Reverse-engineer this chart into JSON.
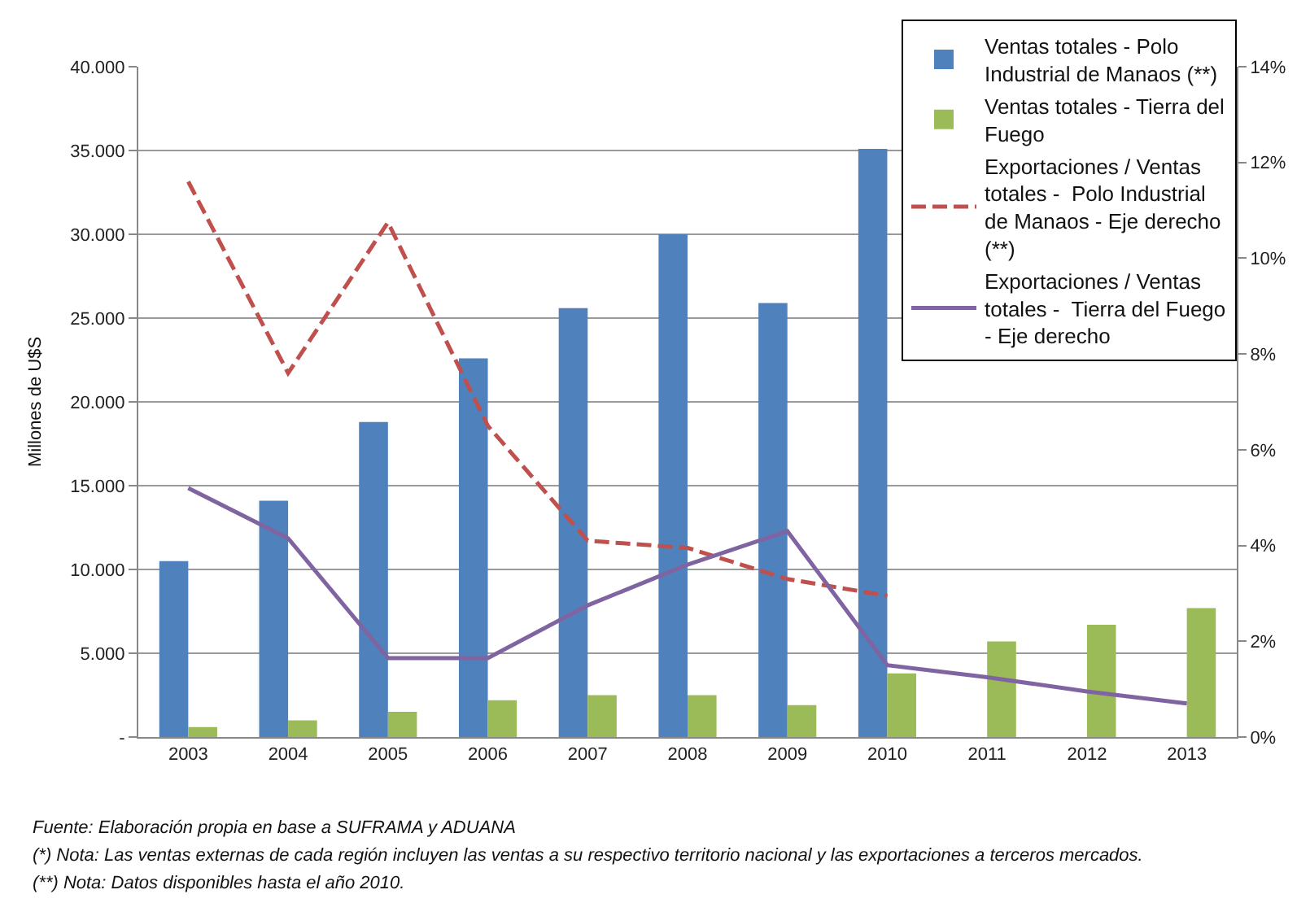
{
  "chart_data": {
    "type": "bar",
    "ylabel": "Millones de U$S",
    "categories": [
      "2003",
      "2004",
      "2005",
      "2006",
      "2007",
      "2008",
      "2009",
      "2010",
      "2011",
      "2012",
      "2013"
    ],
    "series": [
      {
        "name": "Ventas totales - Polo Industrial de Manaos (**)",
        "color": "#4f81bd",
        "values": [
          10500,
          14100,
          18800,
          22600,
          25600,
          30000,
          25900,
          35100,
          null,
          null,
          null
        ]
      },
      {
        "name": "Ventas totales - Tierra del Fuego",
        "color": "#9bbb59",
        "values": [
          600,
          1000,
          1500,
          2200,
          2500,
          2500,
          1900,
          3800,
          5700,
          6700,
          7700
        ]
      },
      {
        "name": "Exportaciones / Ventas totales -  Polo Industrial de Manaos - Eje derecho (**)",
        "type": "line",
        "axis": "y2",
        "line_style": "dashed",
        "color": "#c0504d",
        "values": [
          11.6,
          7.6,
          10.75,
          6.5,
          4.1,
          3.95,
          3.3,
          2.95,
          null,
          null,
          null
        ]
      },
      {
        "name": "Exportaciones / Ventas totales -  Tierra del Fuego - Eje derecho",
        "type": "line",
        "axis": "y2",
        "line_style": "solid",
        "color": "#8064a2",
        "values": [
          5.2,
          4.15,
          1.65,
          1.65,
          2.75,
          3.6,
          4.3,
          1.5,
          1.25,
          0.95,
          0.7
        ]
      }
    ],
    "ylim": [
      0,
      40000
    ],
    "yticks": [
      {
        "value": 0,
        "label": "-"
      },
      {
        "value": 5000,
        "label": "5.000"
      },
      {
        "value": 10000,
        "label": "10.000"
      },
      {
        "value": 15000,
        "label": "15.000"
      },
      {
        "value": 20000,
        "label": "20.000"
      },
      {
        "value": 25000,
        "label": "25.000"
      },
      {
        "value": 30000,
        "label": "30.000"
      },
      {
        "value": 35000,
        "label": "35.000"
      },
      {
        "value": 40000,
        "label": "40.000"
      }
    ],
    "y2lim": [
      0,
      14
    ],
    "y2ticks": [
      {
        "value": 0,
        "label": "0%"
      },
      {
        "value": 2,
        "label": "2%"
      },
      {
        "value": 4,
        "label": "4%"
      },
      {
        "value": 6,
        "label": "6%"
      },
      {
        "value": 8,
        "label": "8%"
      },
      {
        "value": 10,
        "label": "10%"
      },
      {
        "value": 12,
        "label": "12%"
      },
      {
        "value": 14,
        "label": "14%"
      }
    ],
    "grid": "y",
    "legend": "top right",
    "marker": "none",
    "annotations": [
      "Fuente: Elaboración propia en base a SUFRAMA y ADUANA",
      "(*) Nota: Las ventas externas de cada región incluyen las ventas a su respectivo territorio nacional y las exportaciones a terceros mercados.",
      "(**) Nota: Datos disponibles hasta el año 2010."
    ]
  }
}
